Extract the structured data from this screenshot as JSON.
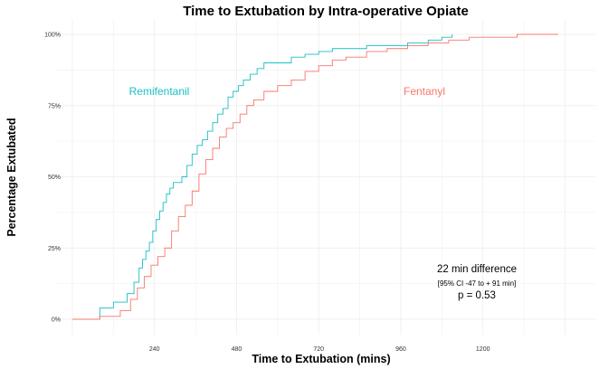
{
  "chart_data": {
    "type": "line",
    "title": "Time to Extubation by Intra-operative Opiate",
    "xlabel": "Time to Extubation (mins)",
    "ylabel": "Percentage Extubated",
    "xlim": [
      0,
      1460
    ],
    "ylim": [
      0,
      1
    ],
    "x_ticks": [
      240,
      480,
      720,
      960,
      1200
    ],
    "y_ticks": [
      0,
      0.25,
      0.5,
      0.75,
      1
    ],
    "y_tick_labels": [
      "0%",
      "25%",
      "50%",
      "75%",
      "100%"
    ],
    "grid": true,
    "series": [
      {
        "name": "Remifentanil",
        "color": "#19BFC4",
        "x": [
          0,
          80,
          120,
          160,
          180,
          195,
          205,
          215,
          225,
          235,
          245,
          255,
          265,
          275,
          285,
          295,
          305,
          320,
          335,
          350,
          365,
          380,
          395,
          410,
          425,
          440,
          455,
          470,
          485,
          500,
          520,
          540,
          560,
          600,
          640,
          680,
          720,
          760,
          800,
          860,
          920,
          980,
          1040,
          1080,
          1110
        ],
        "y": [
          0,
          0.04,
          0.06,
          0.09,
          0.13,
          0.18,
          0.21,
          0.24,
          0.27,
          0.31,
          0.35,
          0.38,
          0.41,
          0.44,
          0.46,
          0.48,
          0.48,
          0.5,
          0.54,
          0.58,
          0.61,
          0.63,
          0.66,
          0.69,
          0.72,
          0.74,
          0.78,
          0.8,
          0.82,
          0.84,
          0.86,
          0.88,
          0.9,
          0.9,
          0.92,
          0.93,
          0.94,
          0.95,
          0.95,
          0.96,
          0.96,
          0.97,
          0.98,
          0.99,
          1.0
        ]
      },
      {
        "name": "Fentanyl",
        "color": "#F8766D",
        "x": [
          0,
          80,
          140,
          170,
          190,
          210,
          230,
          250,
          270,
          290,
          310,
          330,
          350,
          370,
          390,
          410,
          430,
          450,
          470,
          490,
          510,
          530,
          560,
          600,
          640,
          680,
          720,
          760,
          800,
          860,
          920,
          980,
          1040,
          1100,
          1160,
          1220,
          1300,
          1380,
          1420
        ],
        "y": [
          0,
          0.01,
          0.03,
          0.07,
          0.11,
          0.15,
          0.19,
          0.22,
          0.25,
          0.31,
          0.36,
          0.4,
          0.45,
          0.51,
          0.56,
          0.6,
          0.64,
          0.67,
          0.69,
          0.72,
          0.75,
          0.77,
          0.8,
          0.82,
          0.84,
          0.87,
          0.89,
          0.91,
          0.92,
          0.94,
          0.95,
          0.96,
          0.97,
          0.98,
          0.99,
          0.99,
          1.0,
          1.0,
          1.0
        ]
      }
    ],
    "annotations": {
      "line1": "22 min difference",
      "line2": "[95% CI -47 to + 91 min]",
      "line3": "p = 0.53"
    }
  }
}
